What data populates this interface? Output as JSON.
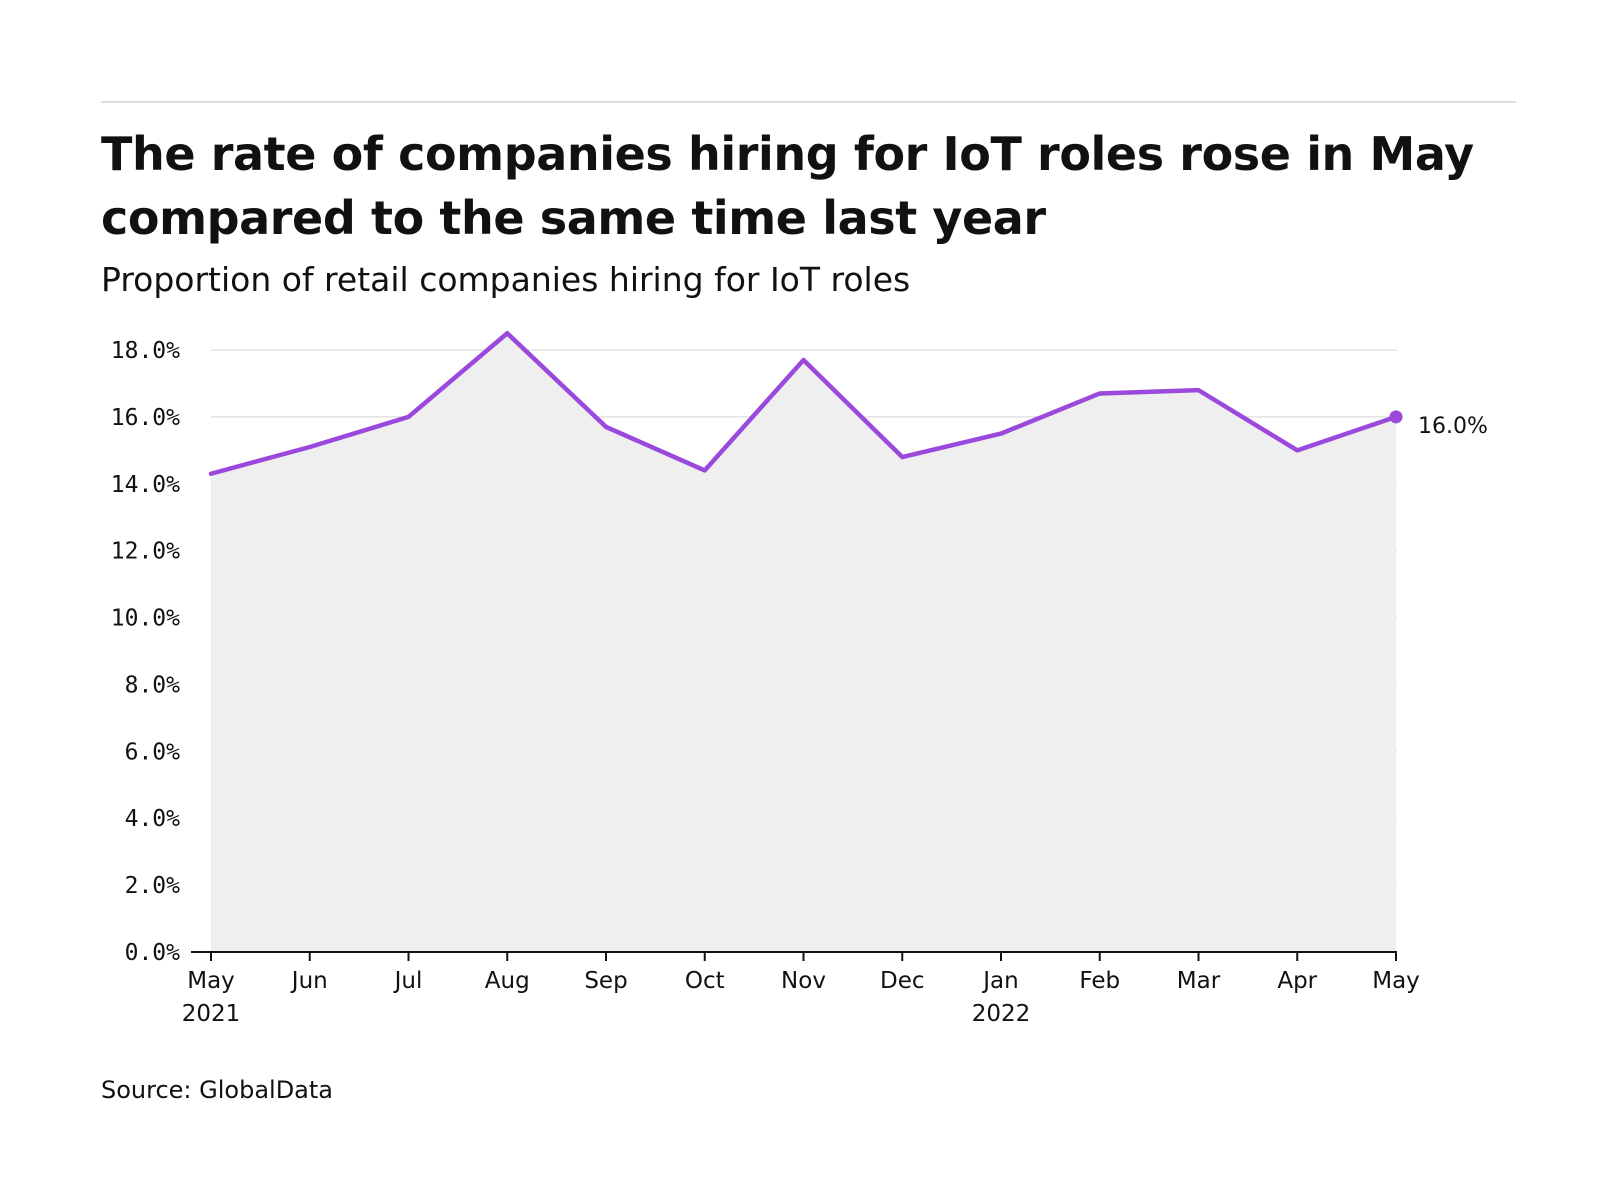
{
  "header": {
    "title": "The rate of companies hiring for IoT roles rose in May compared to the same time last year",
    "subtitle": "Proportion of retail companies hiring for IoT roles"
  },
  "footer": {
    "source": "Source: GlobalData"
  },
  "colors": {
    "line": "#9b48dc",
    "area": "#efefef",
    "grid": "#e2e2e2",
    "axis": "#111111",
    "text": "#111111"
  },
  "chart_data": {
    "type": "line",
    "title": "The rate of companies hiring for IoT roles rose in May compared to the same time last year",
    "subtitle": "Proportion of retail companies hiring for IoT roles",
    "xlabel": "",
    "ylabel": "",
    "x": [
      "May 2021",
      "Jun",
      "Jul",
      "Aug",
      "Sep",
      "Oct",
      "Nov",
      "Dec",
      "Jan 2022",
      "Feb",
      "Mar",
      "Apr",
      "May"
    ],
    "x_tick_labels": [
      [
        "May",
        "2021"
      ],
      [
        "Jun"
      ],
      [
        "Jul"
      ],
      [
        "Aug"
      ],
      [
        "Sep"
      ],
      [
        "Oct"
      ],
      [
        "Nov"
      ],
      [
        "Dec"
      ],
      [
        "Jan",
        "2022"
      ],
      [
        "Feb"
      ],
      [
        "Mar"
      ],
      [
        "Apr"
      ],
      [
        "May"
      ]
    ],
    "series": [
      {
        "values": [
          14.3,
          15.1,
          16.0,
          18.5,
          15.7,
          14.4,
          17.7,
          14.8,
          15.5,
          16.7,
          16.8,
          15.0,
          16.0
        ]
      }
    ],
    "ylim": [
      0,
      18
    ],
    "y_ticks": [
      0,
      2,
      4,
      6,
      8,
      10,
      12,
      14,
      16,
      18
    ],
    "y_tick_labels": [
      "0.0%",
      "2.0%",
      "4.0%",
      "6.0%",
      "8.0%",
      "10.0%",
      "12.0%",
      "14.0%",
      "16.0%",
      "18.0%"
    ],
    "end_label": "16.0%",
    "grid": true,
    "area_fill": true,
    "legend": "none"
  }
}
